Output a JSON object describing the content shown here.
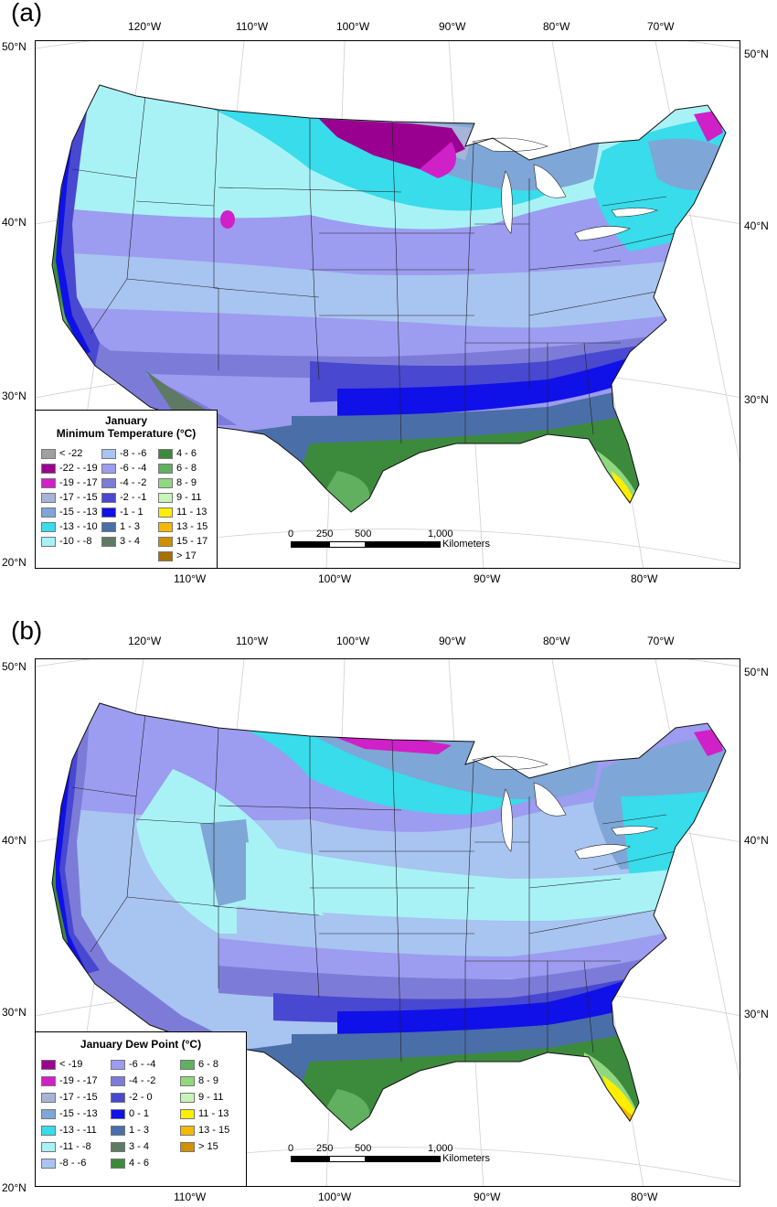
{
  "panels": [
    {
      "label": "(a)",
      "top_lon": [
        "120°W",
        "110°W",
        "100°W",
        "90°W",
        "80°W",
        "70°W"
      ],
      "bottom_lon": [
        "110°W",
        "100°W",
        "90°W",
        "80°W"
      ],
      "left_lat": [
        "50°N",
        "40°N",
        "30°N",
        "20°N"
      ],
      "right_lat": [
        "50°N",
        "40°N",
        "30°N"
      ],
      "legend": {
        "title_line1": "January",
        "title_line2": "Minimum Temperature (°C)",
        "columns": [
          [
            {
              "label": "< -22",
              "color": "#a0a0a0"
            },
            {
              "label": "-22 - -19",
              "color": "#9a0090"
            },
            {
              "label": "-19 - -17",
              "color": "#d020c8"
            },
            {
              "label": "-17 - -15",
              "color": "#a6b4d8"
            },
            {
              "label": "-15 - -13",
              "color": "#7ea6d6"
            },
            {
              "label": "-13 - -10",
              "color": "#38dcea"
            },
            {
              "label": "-10 - -8",
              "color": "#a8f2f6"
            }
          ],
          [
            {
              "label": "-8 - -6",
              "color": "#a8c4f0"
            },
            {
              "label": "-6 - -4",
              "color": "#9c9cf0"
            },
            {
              "label": "-4 - -2",
              "color": "#7c7cd8"
            },
            {
              "label": "-2 - -1",
              "color": "#4848d0"
            },
            {
              "label": "-1 - 1",
              "color": "#1010e8"
            },
            {
              "label": "1 - 3",
              "color": "#4a6ea8"
            },
            {
              "label": "3 - 4",
              "color": "#5e7a64"
            }
          ],
          [
            {
              "label": "4 - 6",
              "color": "#3c8a3c"
            },
            {
              "label": "6 - 8",
              "color": "#60b060"
            },
            {
              "label": "8 - 9",
              "color": "#90d880"
            },
            {
              "label": "9 - 11",
              "color": "#c8f4b8"
            },
            {
              "label": "11 - 13",
              "color": "#ffee00"
            },
            {
              "label": "13 - 15",
              "color": "#f4b800"
            },
            {
              "label": "15 - 17",
              "color": "#d09000"
            },
            {
              "label": "> 17",
              "color": "#a87000"
            }
          ]
        ]
      },
      "scale": {
        "labels": [
          "0",
          "250",
          "500",
          "1,000"
        ],
        "unit": "Kilometers"
      }
    },
    {
      "label": "(b)",
      "top_lon": [
        "120°W",
        "110°W",
        "100°W",
        "90°W",
        "80°W",
        "70°W"
      ],
      "bottom_lon": [
        "110°W",
        "100°W",
        "90°W",
        "80°W"
      ],
      "left_lat": [
        "50°N",
        "40°N",
        "30°N",
        "20°N"
      ],
      "right_lat": [
        "50°N",
        "40°N",
        "30°N"
      ],
      "legend": {
        "title_line1": "January Dew Point (°C)",
        "title_line2": "",
        "columns": [
          [
            {
              "label": "< -19",
              "color": "#9a0090"
            },
            {
              "label": "-19 - -17",
              "color": "#d020c8"
            },
            {
              "label": "-17 - -15",
              "color": "#a6b4d8"
            },
            {
              "label": "-15 - -13",
              "color": "#7ea6d6"
            },
            {
              "label": "-13 - -11",
              "color": "#38dcea"
            },
            {
              "label": "-11 - -8",
              "color": "#a8f2f6"
            },
            {
              "label": "-8 - -6",
              "color": "#a8c4f0"
            }
          ],
          [
            {
              "label": "-6 - -4",
              "color": "#9c9cf0"
            },
            {
              "label": "-4 - -2",
              "color": "#7c7cd8"
            },
            {
              "label": "-2 - 0",
              "color": "#4848d0"
            },
            {
              "label": "0 - 1",
              "color": "#1010e8"
            },
            {
              "label": "1 - 3",
              "color": "#4a6ea8"
            },
            {
              "label": "3 - 4",
              "color": "#5e7a64"
            },
            {
              "label": "4 - 6",
              "color": "#3c8a3c"
            }
          ],
          [
            {
              "label": "6 - 8",
              "color": "#60b060"
            },
            {
              "label": "8 - 9",
              "color": "#90d880"
            },
            {
              "label": "9 - 11",
              "color": "#c8f4b8"
            },
            {
              "label": "11 - 13",
              "color": "#ffee00"
            },
            {
              "label": "13 - 15",
              "color": "#f4b800"
            },
            {
              "label": "> 15",
              "color": "#d09000"
            }
          ]
        ]
      },
      "scale": {
        "labels": [
          "0",
          "250",
          "500",
          "1,000"
        ],
        "unit": "Kilometers"
      }
    }
  ]
}
